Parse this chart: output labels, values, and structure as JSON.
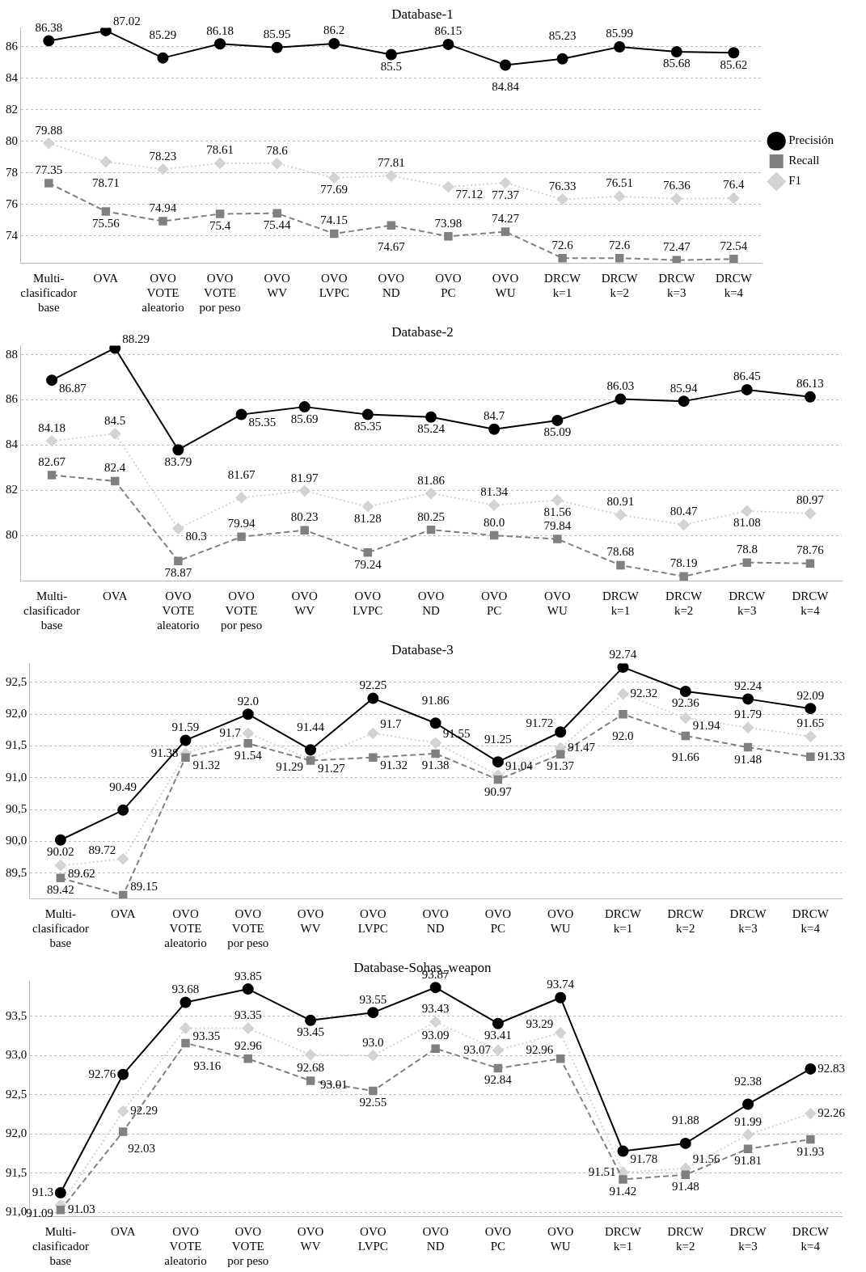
{
  "chart_data": [
    {
      "type": "line",
      "title": "Database-1",
      "categories": [
        "Multi-\nclasificador\nbase",
        "OVA",
        "OVO\nVOTE\naleatorio",
        "OVO\nVOTE\npor peso",
        "OVO\nWV",
        "OVO\nLVPC",
        "OVO\nND",
        "OVO\nPC",
        "OVO\nWU",
        "DRCW\nk=1",
        "DRCW\nk=2",
        "DRCW\nk=3",
        "DRCW\nk=4"
      ],
      "ylim": [
        72.3,
        87.2
      ],
      "yticks": [
        74,
        76,
        78,
        80,
        82,
        84,
        86
      ],
      "grid": "y",
      "legend": "right",
      "series": [
        {
          "name": "Precisión",
          "color": "#000000",
          "marker": "circle",
          "line_style": "solid",
          "values": [
            86.38,
            87.02,
            85.29,
            86.18,
            85.95,
            86.2,
            85.5,
            86.15,
            84.84,
            85.23,
            85.99,
            85.68,
            85.62
          ],
          "value_labels": [
            "86.38",
            "87.02",
            "85.29",
            "86.18",
            "85.95",
            "86.2",
            "85.5",
            "86.15",
            "84.84",
            "85.23",
            "85.99",
            "85.68",
            "85.62"
          ]
        },
        {
          "name": "Recall",
          "color": "#808080",
          "marker": "square",
          "line_style": "dashed",
          "values": [
            77.35,
            75.56,
            74.94,
            75.4,
            75.44,
            74.15,
            74.67,
            73.98,
            74.27,
            72.6,
            72.6,
            72.47,
            72.54
          ],
          "value_labels": [
            "77.35",
            "75.56",
            "74.94",
            "75.4",
            "75.44",
            "74.15",
            "74.67",
            "73.98",
            "74.27",
            "72.6",
            "72.6",
            "72.47",
            "72.54"
          ]
        },
        {
          "name": "F1",
          "color": "#d3d3d3",
          "marker": "diamond",
          "line_style": "dotted",
          "values": [
            79.88,
            78.71,
            78.23,
            78.61,
            78.6,
            77.69,
            77.81,
            77.12,
            77.37,
            76.33,
            76.51,
            76.36,
            76.4
          ],
          "value_labels": [
            "79.88",
            "78.71",
            "78.23",
            "78.61",
            "78.6",
            "77.69",
            "77.81",
            "77.12",
            "77.37",
            "76.33",
            "76.51",
            "76.36",
            "76.4"
          ]
        }
      ]
    },
    {
      "type": "line",
      "title": "Database-2",
      "categories": [
        "Multi-\nclasificador\nbase",
        "OVA",
        "OVO\nVOTE\naleatorio",
        "OVO\nVOTE\npor peso",
        "OVO\nWV",
        "OVO\nLVPC",
        "OVO\nND",
        "OVO\nPC",
        "OVO\nWU",
        "DRCW\nk=1",
        "DRCW\nk=2",
        "DRCW\nk=3",
        "DRCW\nk=4"
      ],
      "ylim": [
        78.0,
        88.4
      ],
      "yticks": [
        80,
        82,
        84,
        86,
        88
      ],
      "grid": "y",
      "series": [
        {
          "color": "#000000",
          "marker": "circle",
          "line_style": "solid",
          "values": [
            86.87,
            88.29,
            83.79,
            85.35,
            85.69,
            85.35,
            85.24,
            84.7,
            85.09,
            86.03,
            85.94,
            86.45,
            86.13
          ],
          "value_labels": [
            "86.87",
            "88.29",
            "83.79",
            "85.35",
            "85.69",
            "85.35",
            "85.24",
            "84.7",
            "85.09",
            "86.03",
            "85.94",
            "86.45",
            "86.13"
          ]
        },
        {
          "color": "#808080",
          "marker": "square",
          "line_style": "dashed",
          "values": [
            82.67,
            82.4,
            78.87,
            79.94,
            80.23,
            79.24,
            80.25,
            80.0,
            79.84,
            78.68,
            78.19,
            78.8,
            78.76
          ],
          "value_labels": [
            "82.67",
            "82.4",
            "78.87",
            "79.94",
            "80.23",
            "79.24",
            "80.25",
            "80.0",
            "79.84",
            "78.68",
            "78.19",
            "78.8",
            "78.76"
          ]
        },
        {
          "color": "#d3d3d3",
          "marker": "diamond",
          "line_style": "dotted",
          "values": [
            84.18,
            84.5,
            80.3,
            81.67,
            81.97,
            81.28,
            81.86,
            81.34,
            81.56,
            80.91,
            80.47,
            81.08,
            80.97
          ],
          "value_labels": [
            "84.18",
            "84.5",
            "80.3",
            "81.67",
            "81.97",
            "81.28",
            "81.86",
            "81.34",
            "81.56",
            "80.91",
            "80.47",
            "81.08",
            "80.97"
          ]
        }
      ]
    },
    {
      "type": "line",
      "title": "Database-3",
      "categories": [
        "Multi-\nclasificador\nbase",
        "OVA",
        "OVO\nVOTE\naleatorio",
        "OVO\nVOTE\npor peso",
        "OVO\nWV",
        "OVO\nLVPC",
        "OVO\nND",
        "OVO\nPC",
        "OVO\nWU",
        "DRCW\nk=1",
        "DRCW\nk=2",
        "DRCW\nk=3",
        "DRCW\nk=4"
      ],
      "ylim": [
        89.1,
        92.8
      ],
      "yticks": [
        {
          "value": 89.5,
          "label": "89,5"
        },
        {
          "value": 90,
          "label": "90,0"
        },
        {
          "value": 90.5,
          "label": "90,5"
        },
        {
          "value": 91,
          "label": "91,0"
        },
        {
          "value": 91.5,
          "label": "91,5"
        },
        {
          "value": 92,
          "label": "92,0"
        },
        {
          "value": 92.5,
          "label": "92,5"
        }
      ],
      "grid": "y",
      "series": [
        {
          "color": "#000000",
          "marker": "circle",
          "line_style": "solid",
          "values": [
            90.02,
            90.49,
            91.59,
            92.0,
            91.44,
            92.25,
            91.86,
            91.25,
            91.72,
            92.74,
            92.36,
            92.24,
            92.09
          ],
          "value_labels": [
            "90.02",
            "90.49",
            "91.59",
            "92.0",
            "91.44",
            "92.25",
            "91.86",
            "91.25",
            "91.72",
            "92.74",
            "92.36",
            "92.24",
            "92.09"
          ]
        },
        {
          "color": "#808080",
          "marker": "square",
          "line_style": "dashed",
          "values": [
            89.42,
            89.15,
            91.32,
            91.54,
            91.27,
            91.32,
            91.38,
            90.97,
            91.37,
            92.0,
            91.66,
            91.48,
            91.33
          ],
          "value_labels": [
            "89.42",
            "89.15",
            "91.32",
            "91.54",
            "91.27",
            "91.32",
            "91.38",
            "90.97",
            "91.37",
            "92.0",
            "91.66",
            "91.48",
            "91.33"
          ]
        },
        {
          "color": "#d3d3d3",
          "marker": "diamond",
          "line_style": "dotted",
          "values": [
            89.62,
            89.72,
            91.38,
            91.7,
            91.29,
            91.7,
            91.55,
            91.04,
            91.47,
            92.32,
            91.94,
            91.79,
            91.65
          ],
          "value_labels": [
            "89.62",
            "89.72",
            "91.38",
            "91.7",
            "91.29",
            "91.7",
            "91.55",
            "91.04",
            "91.47",
            "92.32",
            "91.94",
            "91.79",
            "91.65"
          ]
        }
      ]
    },
    {
      "type": "line",
      "title": "Database-Sohas_weapon",
      "categories": [
        "Multi-\nclasificador\nbase",
        "OVA",
        "OVO\nVOTE\naleatorio",
        "OVO\nVOTE\npor peso",
        "OVO\nWV",
        "OVO\nLVPC",
        "OVO\nND",
        "OVO\nPC",
        "OVO\nWU",
        "DRCW\nk=1",
        "DRCW\nk=2",
        "DRCW\nk=3",
        "DRCW\nk=4"
      ],
      "ylim": [
        90.95,
        93.95
      ],
      "yticks": [
        {
          "value": 91,
          "label": "91,0"
        },
        {
          "value": 91.5,
          "label": "91,5"
        },
        {
          "value": 92,
          "label": "92,0"
        },
        {
          "value": 92.5,
          "label": "92,5"
        },
        {
          "value": 93,
          "label": "93,0"
        },
        {
          "value": 93.5,
          "label": "93,5"
        }
      ],
      "grid": "y",
      "series": [
        {
          "color": "#000000",
          "marker": "circle",
          "line_style": "solid",
          "values": [
            91.25,
            92.76,
            93.68,
            93.85,
            93.45,
            93.55,
            93.87,
            93.41,
            93.74,
            91.78,
            91.88,
            92.38,
            92.83
          ],
          "value_labels": [
            "91.3",
            "92.76",
            "93.68",
            "93.85",
            "93.45",
            "93.55",
            "93.87",
            "93.41",
            "93.74",
            "91.78",
            "91.88",
            "92.38",
            "92.83"
          ]
        },
        {
          "color": "#808080",
          "marker": "square",
          "line_style": "dashed",
          "values": [
            91.03,
            92.03,
            93.16,
            92.96,
            92.68,
            92.55,
            93.09,
            92.84,
            92.96,
            91.42,
            91.48,
            91.81,
            91.93
          ],
          "value_labels": [
            "91.03",
            "92.03",
            "93.16",
            "92.96",
            "92.68",
            "92.55",
            "93.09",
            "92.84",
            "92.96",
            "91.42",
            "91.48",
            "91.81",
            "91.93"
          ]
        },
        {
          "color": "#d3d3d3",
          "marker": "diamond",
          "line_style": "dotted",
          "values": [
            91.09,
            92.29,
            93.35,
            93.35,
            93.01,
            93.0,
            93.43,
            93.07,
            93.29,
            91.51,
            91.56,
            91.99,
            92.26
          ],
          "value_labels": [
            "91.09",
            "92.29",
            "93.35",
            "93.35",
            "93.01",
            "93.0",
            "93.43",
            "93.07",
            "93.29",
            "91.51",
            "91.56",
            "91.99",
            "92.26"
          ]
        }
      ]
    }
  ]
}
